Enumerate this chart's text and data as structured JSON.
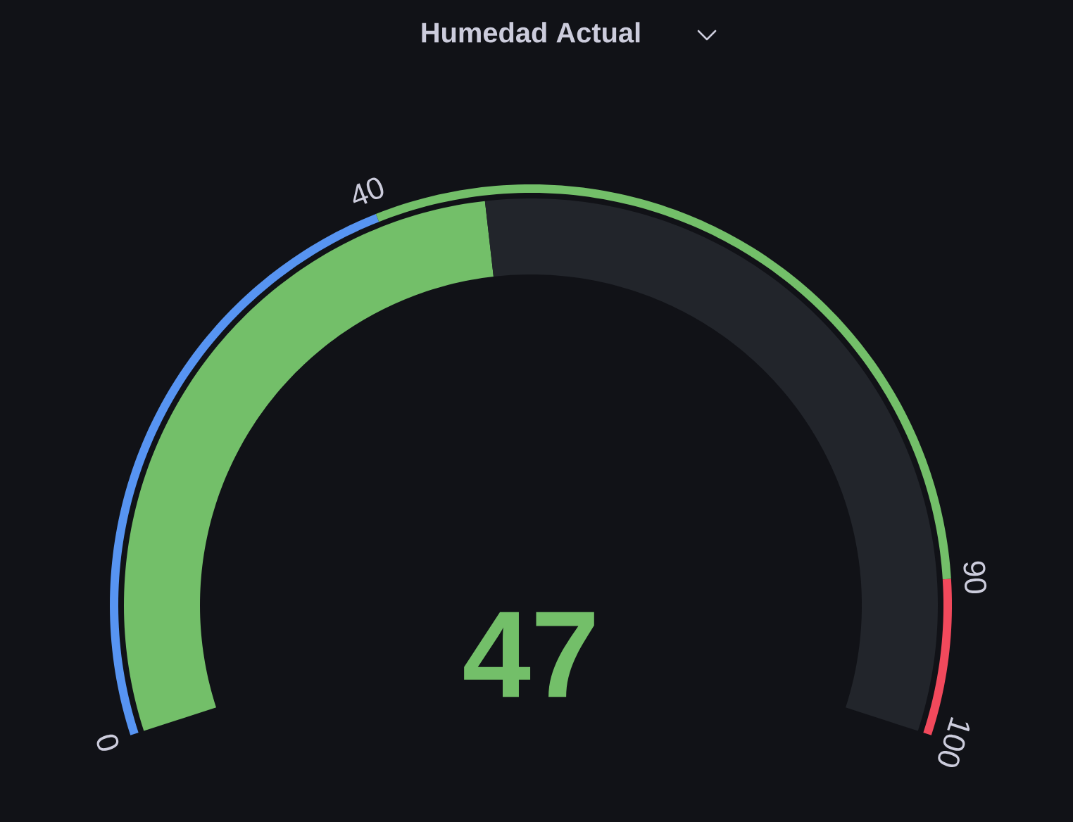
{
  "chart_data": {
    "type": "donut",
    "title": "Humedad Actual",
    "series": [
      {
        "values": [
          47,
          53
        ],
        "colors": [
          "#73bf69",
          "#22252b"
        ]
      },
      {
        "values": [
          40,
          50,
          10
        ],
        "colors": [
          "#5794f2",
          "#73bf69",
          "#f2495c"
        ]
      }
    ],
    "annotations": [
      "0",
      "40",
      "90",
      "100",
      "47"
    ]
  }
}
